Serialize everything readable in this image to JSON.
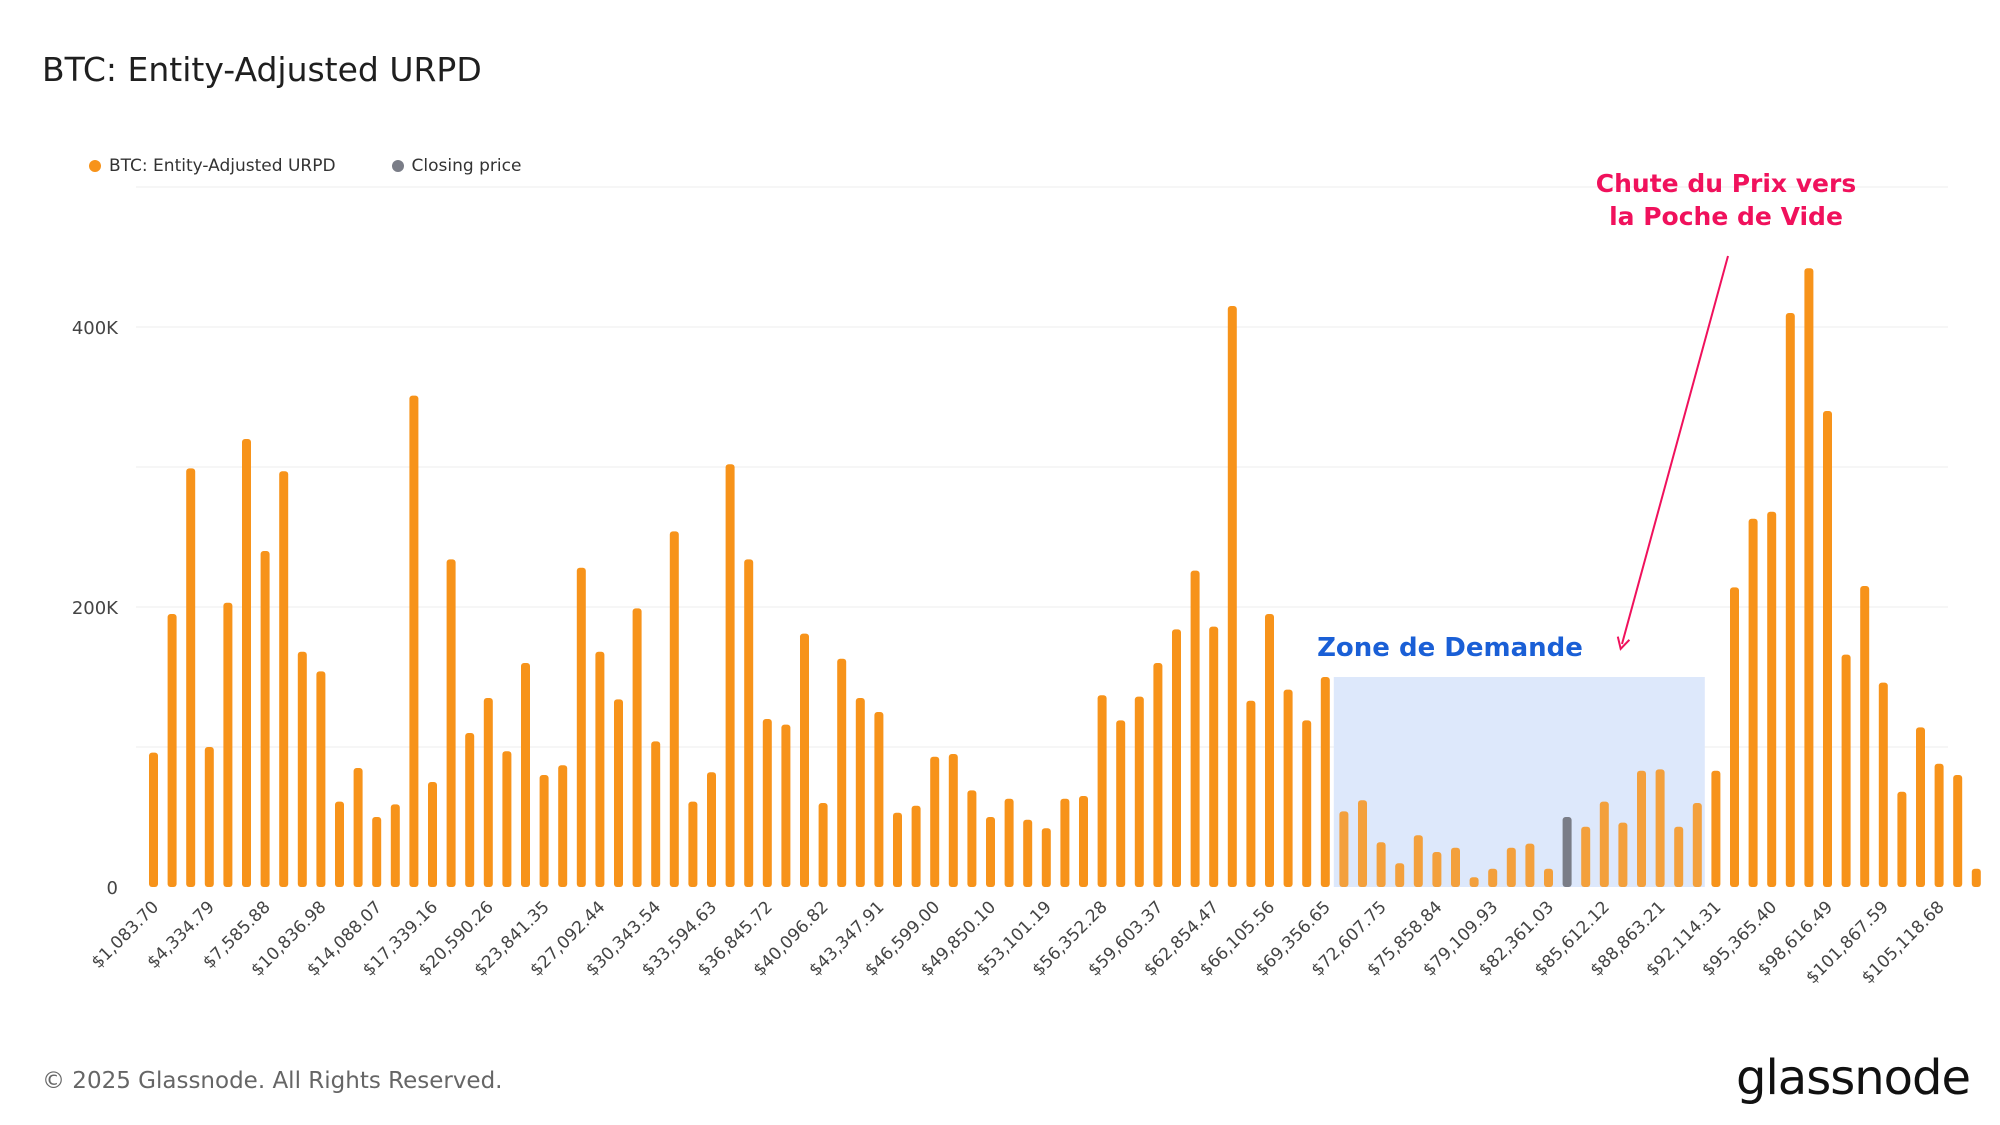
{
  "title": "BTC: Entity-Adjusted URPD",
  "legend": [
    {
      "label": "BTC: Entity-Adjusted URPD",
      "color": "#f7931a"
    },
    {
      "label": "Closing price",
      "color": "#7a7d87"
    }
  ],
  "footer": "© 2025 Glassnode. All Rights Reserved.",
  "brand": "glassnode",
  "annotations": {
    "zone_label": "Zone de Demande",
    "arrow_label_line1": "Chute du Prix vers",
    "arrow_label_line2": "la Poche de Vide"
  },
  "colors": {
    "bar": "#f7931a",
    "closing_bar": "#7a7d87",
    "zone_fill": "#dde8fb",
    "zone_text": "#1a5fd6",
    "annotation": "#f0115c",
    "grid": "#ececec",
    "axis_text": "#444444"
  },
  "chart_data": {
    "type": "bar",
    "title": "BTC: Entity-Adjusted URPD",
    "xlabel": "",
    "ylabel": "",
    "ylim": [
      0,
      500000
    ],
    "y_ticks": [
      {
        "value": 0,
        "label": "0"
      },
      {
        "value": 200000,
        "label": "200K"
      },
      {
        "value": 400000,
        "label": "400K"
      }
    ],
    "gridlines": [
      100000,
      200000,
      300000,
      400000,
      500000
    ],
    "x_tick_labels": [
      "$1,083.70",
      "$4,334.79",
      "$7,585.88",
      "$10,836.98",
      "$14,088.07",
      "$17,339.16",
      "$20,590.26",
      "$23,841.35",
      "$27,092.44",
      "$30,343.54",
      "$33,594.63",
      "$36,845.72",
      "$40,096.82",
      "$43,347.91",
      "$46,599.00",
      "$49,850.10",
      "$53,101.19",
      "$56,352.28",
      "$59,603.37",
      "$62,854.47",
      "$66,105.56",
      "$69,356.65",
      "$72,607.75",
      "$75,858.84",
      "$79,109.93",
      "$82,361.03",
      "$85,612.12",
      "$88,863.21",
      "$92,114.31",
      "$95,365.40",
      "$98,616.49",
      "$101,867.59",
      "$105,118.68"
    ],
    "tick_every": 3,
    "closing_price_index": 76,
    "demand_zone": {
      "start_index": 63,
      "end_index": 83,
      "top_value": 150000
    },
    "values": [
      96000,
      195000,
      299000,
      100000,
      203000,
      320000,
      240000,
      297000,
      168000,
      154000,
      61000,
      85000,
      50000,
      59000,
      351000,
      75000,
      234000,
      110000,
      135000,
      97000,
      160000,
      80000,
      87000,
      228000,
      168000,
      134000,
      199000,
      104000,
      254000,
      61000,
      82000,
      302000,
      234000,
      120000,
      116000,
      181000,
      60000,
      163000,
      135000,
      125000,
      53000,
      58000,
      93000,
      95000,
      69000,
      50000,
      63000,
      48000,
      42000,
      63000,
      65000,
      137000,
      119000,
      136000,
      160000,
      184000,
      226000,
      186000,
      415000,
      133000,
      195000,
      141000,
      119000,
      150000,
      54000,
      62000,
      32000,
      17000,
      37000,
      25000,
      28000,
      7000,
      13000,
      28000,
      31000,
      13000,
      50000,
      43000,
      61000,
      46000,
      83000,
      84000,
      43000,
      60000,
      83000,
      214000,
      263000,
      268000,
      410000,
      442000,
      340000,
      166000,
      215000,
      146000,
      68000,
      114000,
      88000,
      80000,
      13000
    ]
  }
}
